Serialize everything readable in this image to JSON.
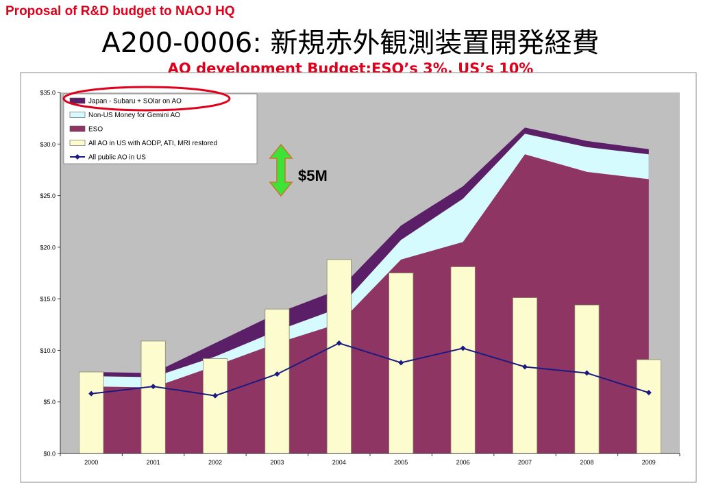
{
  "header": {
    "proposal": "Proposal of R&D budget to NAOJ HQ",
    "title": "A200-0006: 新規赤外観測装置開発経費",
    "subtitle": "AO development Budget:ESO’s 3%, US’s 10%"
  },
  "annotation": {
    "label": "$5M"
  },
  "colors": {
    "japan": "#5b1f68",
    "gemini": "#d5fbfe",
    "eso": "#8f3563",
    "us_bar": "#fdfccf",
    "public_line": "#1b1a80",
    "plot_bg": "#bfbfbf",
    "highlight_ring": "#e0001b",
    "arrow_fill": "#3ee337",
    "arrow_stroke": "#c87a2a"
  },
  "chart_data": {
    "type": "area",
    "categories": [
      "2000",
      "2001",
      "2002",
      "2003",
      "2004",
      "2005",
      "2006",
      "2007",
      "2008",
      "2009"
    ],
    "ylim": [
      0,
      35
    ],
    "y_ticks": [
      "$0.0",
      "$5.0",
      "$10.0",
      "$15.0",
      "$20.0",
      "$25.0",
      "$30.0",
      "$35.0"
    ],
    "grid": false,
    "legend_position": "top-left",
    "series": [
      {
        "name": "Japan - Subaru + SOlar on AO",
        "kind": "stacked-area",
        "values": [
          0.4,
          0.4,
          1.3,
          1.7,
          1.8,
          1.4,
          1.2,
          0.6,
          0.6,
          0.5
        ]
      },
      {
        "name": "Non-US Money for Gemini AO",
        "kind": "stacked-area",
        "values": [
          1.0,
          1.0,
          0.9,
          1.2,
          1.5,
          1.9,
          4.2,
          2.0,
          2.4,
          2.4
        ]
      },
      {
        "name": "ESO",
        "kind": "stacked-area",
        "values": [
          6.5,
          6.4,
          8.5,
          10.7,
          12.6,
          18.8,
          20.5,
          29.0,
          27.3,
          26.6
        ]
      },
      {
        "name": "All AO in US with AODP, ATI, MRI restored",
        "kind": "bar",
        "values": [
          7.9,
          10.9,
          9.2,
          14.0,
          18.8,
          17.5,
          18.1,
          15.1,
          14.4,
          9.1
        ]
      },
      {
        "name": "All public AO in US",
        "kind": "line",
        "values": [
          5.8,
          6.5,
          5.6,
          7.7,
          10.7,
          8.8,
          10.2,
          8.4,
          7.8,
          5.9
        ]
      }
    ]
  }
}
